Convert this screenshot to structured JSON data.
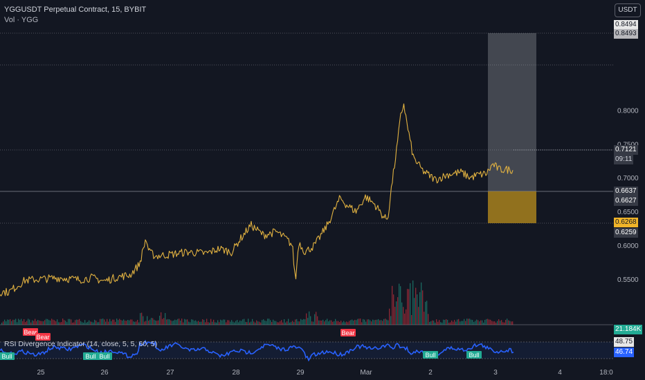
{
  "header": {
    "title": "YGGUSDT Perpetual Contract, 15, BYBIT",
    "subtitle": "Vol · YGG"
  },
  "currency_button": "USDT",
  "rsi_indicator": {
    "title": "RSI Divergence Indicator (14, close, 5, 5, 60, 5)",
    "value_a": "48.75",
    "value_b": "46.74"
  },
  "colors": {
    "background": "#131722",
    "candle": "#e3b341",
    "rsi_line": "#2962ff",
    "target_zone": "#b2b5be",
    "stop_zone": "#a07b1e",
    "bear": "#f23645",
    "bull": "#22ab94"
  },
  "chart_data": {
    "type": "line",
    "symbol": "YGGUSDT",
    "exchange": "BYBIT",
    "interval": "15",
    "x_ticks": [
      "25",
      "26",
      "27",
      "28",
      "29",
      "Mar",
      "2",
      "3",
      "4",
      "18:0"
    ],
    "y_ticks": [
      "0.5500",
      "0.6000",
      "0.6500",
      "0.7000",
      "0.7500",
      "0.8000"
    ],
    "ylim": [
      0.522,
      0.862
    ],
    "series": [
      {
        "x": [
          24.5,
          24.75,
          25.0,
          25.3,
          25.6,
          25.8,
          26.0,
          26.2,
          26.4,
          26.55,
          26.65,
          26.7,
          26.8,
          27.0,
          27.3,
          27.6,
          27.8,
          28.0,
          28.1,
          28.3,
          28.5,
          28.7,
          28.85,
          28.95,
          29.0,
          29.05,
          29.15,
          29.3,
          29.5,
          29.7,
          29.8,
          29.95,
          30.1,
          30.25,
          30.4,
          30.45,
          30.5,
          30.6,
          30.65,
          30.7,
          30.75,
          30.85,
          31.0,
          31.2,
          31.4,
          31.6,
          31.75,
          31.85,
          32.0,
          32.1,
          32.2
        ],
        "y": [
          0.531,
          0.548,
          0.55,
          0.552,
          0.549,
          0.552,
          0.547,
          0.553,
          0.556,
          0.572,
          0.61,
          0.59,
          0.584,
          0.586,
          0.59,
          0.588,
          0.595,
          0.59,
          0.605,
          0.63,
          0.615,
          0.62,
          0.61,
          0.6,
          0.546,
          0.605,
          0.59,
          0.6,
          0.63,
          0.67,
          0.66,
          0.65,
          0.672,
          0.66,
          0.64,
          0.64,
          0.68,
          0.75,
          0.79,
          0.81,
          0.78,
          0.73,
          0.71,
          0.697,
          0.705,
          0.708,
          0.7,
          0.704,
          0.706,
          0.72,
          0.712
        ]
      }
    ],
    "volume_label": "21.184K",
    "price_labels": {
      "target_top": "0.8494",
      "target_line": "0.8493",
      "current_price": "0.7121",
      "countdown": "09:11",
      "entry_high": "0.6637",
      "entry_low": "0.6627",
      "stop_price": "0.6268",
      "stop_line": "0.6259"
    },
    "rsi_signals": [
      {
        "text": "Bear",
        "type": "bear"
      },
      {
        "text": "Bear",
        "type": "bear"
      },
      {
        "text": "Bear",
        "type": "bear"
      },
      {
        "text": "Bull",
        "type": "bull"
      },
      {
        "text": "Bull",
        "type": "bull"
      },
      {
        "text": "Bull",
        "type": "bull"
      },
      {
        "text": "Bull",
        "type": "bull"
      },
      {
        "text": "Bull",
        "type": "bull"
      }
    ]
  }
}
